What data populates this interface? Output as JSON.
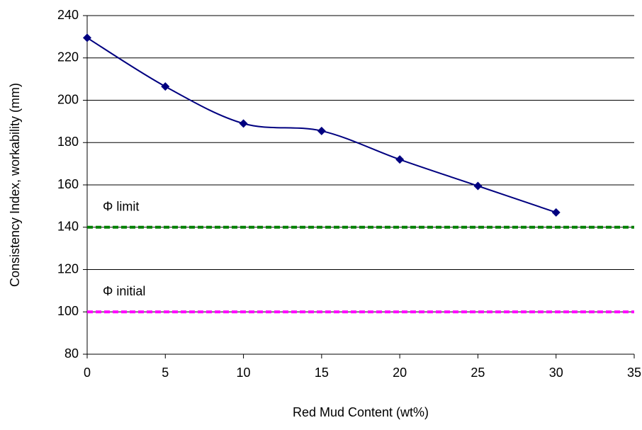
{
  "chart_data": {
    "type": "line",
    "x_label": "Red Mud Content (wt%)",
    "y_label": "Consistency Index, workability (mm)",
    "x": [
      0,
      5,
      10,
      15,
      20,
      25,
      30
    ],
    "values": [
      229.5,
      206.5,
      189,
      185.5,
      172,
      159.5,
      147
    ],
    "color": "#000080",
    "smooth": true,
    "marker": "diamond",
    "xlim": [
      0,
      35
    ],
    "xticks": [
      0,
      5,
      10,
      15,
      20,
      25,
      30,
      35
    ],
    "ylim": [
      80,
      240
    ],
    "yticks": [
      80,
      100,
      120,
      140,
      160,
      180,
      200,
      220,
      240
    ],
    "grid": true,
    "reference_lines": [
      {
        "label": "Φ limit",
        "value": 140,
        "color": "#008000"
      },
      {
        "label": "Φ initial",
        "value": 100,
        "color": "#ff00ff"
      }
    ]
  }
}
